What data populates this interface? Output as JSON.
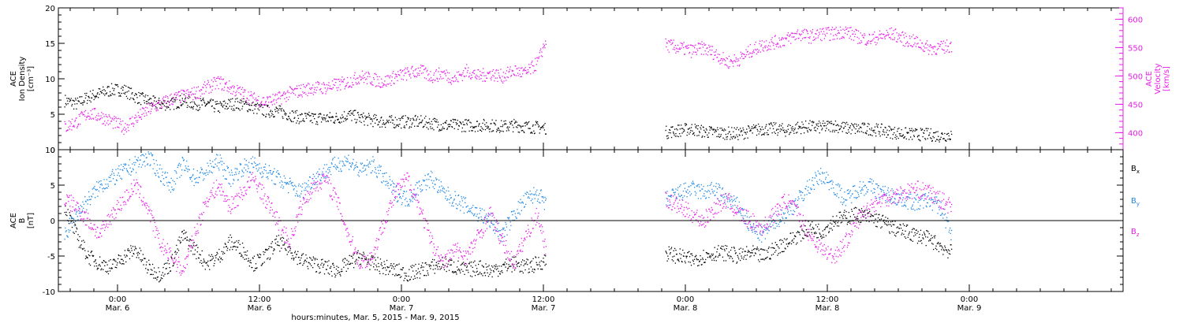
{
  "colors": {
    "black": "#000000",
    "magenta": "#e81ce8",
    "blue": "#1e88e5"
  },
  "xaxis": {
    "range": [
      -5,
      85
    ],
    "ticks": [
      {
        "x": 0,
        "time": "0:00",
        "date": "Mar. 6"
      },
      {
        "x": 12,
        "time": "12:00",
        "date": "Mar. 6"
      },
      {
        "x": 24,
        "time": "0:00",
        "date": "Mar. 7"
      },
      {
        "x": 36,
        "time": "12:00",
        "date": "Mar. 7"
      },
      {
        "x": 48,
        "time": "0:00",
        "date": "Mar. 8"
      },
      {
        "x": 60,
        "time": "12:00",
        "date": "Mar. 8"
      },
      {
        "x": 72,
        "time": "0:00",
        "date": "Mar. 9"
      }
    ],
    "title": "hours:minutes, Mar. 5, 2015 - Mar. 9, 2015"
  },
  "chart_data": [
    {
      "type": "scatter",
      "panel": "top",
      "left_axis": {
        "label_lines": [
          "ACE",
          "Ion Density",
          "[cm⁻³]"
        ],
        "ylim": [
          0,
          20
        ],
        "ticks": [
          "0",
          "5",
          "10",
          "15",
          "20"
        ],
        "color": "#000000"
      },
      "right_axis": {
        "label_lines": [
          "ACE",
          "Velocity",
          "[km/s]"
        ],
        "ylim": [
          370,
          620
        ],
        "ticks": [
          "400",
          "450",
          "500",
          "550",
          "600"
        ],
        "color": "#e81ce8"
      },
      "series": [
        {
          "axis": "left",
          "color": "#000000",
          "x": [
            -4.5,
            -3.5,
            -2.5,
            -1.5,
            -0.5,
            0.5,
            1.5,
            2.5,
            3.5,
            4.5,
            5.5,
            6.5,
            7.5,
            8.5,
            9.5,
            10.5,
            11.5,
            12.5,
            13.5,
            14.5,
            15.5,
            16.5,
            17.5,
            18.5,
            19.5,
            20.5,
            21.5,
            22.5,
            23.5,
            24.5,
            25.5,
            26.5,
            27.5,
            28.5,
            29.5,
            30.5,
            31.5,
            32.5,
            33.5,
            34.5,
            35.5,
            36.5,
            46.3,
            47.5,
            48.5,
            49.5,
            50.5,
            51.5,
            52.5,
            53.5,
            54.5,
            55.5,
            56.5,
            57.5,
            58.5,
            59.5,
            60.5,
            61.5,
            62.5,
            63.5,
            64.5,
            65.5,
            66.5,
            67.5,
            68.5,
            69.5,
            70.5
          ],
          "y": [
            7,
            6.5,
            7.5,
            8,
            8.5,
            8.5,
            7.5,
            7,
            6.5,
            6.5,
            7,
            6.5,
            6.5,
            6,
            6.5,
            6.5,
            6,
            5.5,
            5.5,
            5,
            4.5,
            4.5,
            4.5,
            4.5,
            5,
            4.5,
            4.2,
            4,
            4,
            4,
            4,
            3.8,
            3.5,
            3.5,
            3.5,
            3.5,
            3.5,
            3.3,
            3.5,
            3.3,
            3.2,
            3.1,
            2.5,
            2.8,
            3,
            2.6,
            2.5,
            2.4,
            2.3,
            2.7,
            3,
            3,
            2.8,
            3.2,
            3.3,
            3.2,
            3.5,
            3.1,
            3,
            3,
            2.8,
            2.5,
            2.3,
            2.2,
            2.2,
            2,
            2.2
          ]
        },
        {
          "axis": "right",
          "color": "#e81ce8",
          "x": [
            -4.5,
            -3.5,
            -2.5,
            -1.5,
            -0.5,
            0.5,
            1.5,
            2.5,
            3.5,
            4.5,
            5.5,
            6.5,
            7.5,
            8.5,
            9.5,
            10.5,
            11.5,
            12.5,
            13.5,
            14.5,
            15.5,
            16.5,
            17.5,
            18.5,
            19.5,
            20.5,
            21.5,
            22.5,
            23.5,
            24.5,
            25.5,
            26.5,
            27.5,
            28.5,
            29.5,
            30.5,
            31.5,
            32.5,
            33.5,
            34.5,
            35.5,
            36.2,
            46.3,
            47.5,
            48.5,
            49.5,
            50.5,
            51.5,
            52.5,
            53.5,
            54.5,
            55.5,
            56.5,
            57.5,
            58.5,
            59.5,
            60.5,
            61.5,
            62.5,
            63.5,
            64.5,
            65.5,
            66.5,
            67.5,
            68.5,
            69.5,
            70.5
          ],
          "y": [
            410,
            420,
            435,
            430,
            420,
            410,
            425,
            440,
            450,
            460,
            465,
            470,
            480,
            490,
            480,
            470,
            460,
            455,
            460,
            470,
            475,
            480,
            480,
            485,
            490,
            500,
            495,
            490,
            500,
            505,
            510,
            500,
            505,
            495,
            510,
            500,
            505,
            500,
            510,
            505,
            525,
            565,
            555,
            550,
            545,
            550,
            540,
            525,
            530,
            545,
            555,
            560,
            565,
            575,
            570,
            575,
            575,
            580,
            570,
            565,
            570,
            575,
            565,
            560,
            550,
            550,
            555
          ]
        }
      ]
    },
    {
      "type": "scatter",
      "panel": "bottom",
      "left_axis": {
        "label_lines": [
          "ACE",
          "B",
          "[nT]"
        ],
        "ylim": [
          -10,
          10
        ],
        "ticks": [
          "-10",
          "-5",
          "0",
          "5",
          "10"
        ],
        "color": "#000000"
      },
      "zero_line": 0,
      "legend": {
        "placement": "right",
        "entries": [
          {
            "base": "B",
            "sub": "x",
            "color": "#000000"
          },
          {
            "base": "B",
            "sub": "y",
            "color": "#1e88e5"
          },
          {
            "base": "B",
            "sub": "z",
            "color": "#e81ce8"
          }
        ]
      },
      "series": [
        {
          "name": "Bx",
          "color": "#000000",
          "x": [
            -4.5,
            -3.5,
            -2.5,
            -1.5,
            -0.5,
            0.5,
            1.5,
            2.5,
            3.5,
            4.5,
            5.5,
            6.5,
            7.5,
            8.5,
            9.5,
            10.5,
            11.5,
            12.5,
            13.5,
            14.5,
            15.5,
            16.5,
            17.5,
            18.5,
            19.5,
            20.5,
            21.5,
            22.5,
            23.5,
            24.5,
            25.5,
            26.5,
            27.5,
            28.5,
            29.5,
            30.5,
            31.5,
            32.5,
            33.5,
            34.5,
            35.5,
            36.2,
            46.3,
            47.5,
            48.5,
            49.5,
            50.5,
            51.5,
            52.5,
            53.5,
            54.5,
            55.5,
            56.5,
            57.5,
            58.5,
            59.5,
            60.5,
            61.5,
            62.5,
            63.5,
            64.5,
            65.5,
            66.5,
            67.5,
            68.5,
            69.5,
            70.5
          ],
          "y": [
            2,
            -2,
            -5,
            -6,
            -6.5,
            -5,
            -4,
            -6.5,
            -7.5,
            -6,
            -2,
            -4,
            -6,
            -5,
            -3,
            -4,
            -6,
            -5,
            -3,
            -4,
            -5.5,
            -6,
            -6.5,
            -7,
            -6,
            -5,
            -6,
            -6.5,
            -7,
            -7.5,
            -7,
            -6.5,
            -6,
            -6.5,
            -7,
            -6.5,
            -7,
            -6.5,
            -6,
            -6.5,
            -6,
            -5.5,
            -4.5,
            -5,
            -5.5,
            -5,
            -4.5,
            -4.5,
            -5,
            -4.5,
            -5,
            -4,
            -3,
            -2,
            -1,
            -1.5,
            0,
            0.5,
            1,
            0.5,
            0,
            -1,
            -1.5,
            -2,
            -2.5,
            -3.5,
            -4.5
          ]
        },
        {
          "name": "By",
          "color": "#1e88e5",
          "x": [
            -4.5,
            -3.5,
            -2.5,
            -1.5,
            -0.5,
            0.5,
            1.5,
            2.5,
            3.5,
            4.5,
            5.5,
            6.5,
            7.5,
            8.5,
            9.5,
            10.5,
            11.5,
            12.5,
            13.5,
            14.5,
            15.5,
            16.5,
            17.5,
            18.5,
            19.5,
            20.5,
            21.5,
            22.5,
            23.5,
            24.5,
            25.5,
            26.5,
            27.5,
            28.5,
            29.5,
            30.5,
            31.5,
            32.5,
            33.5,
            34.5,
            35.5,
            36.2,
            46.3,
            47.5,
            48.5,
            49.5,
            50.5,
            51.5,
            52.5,
            53.5,
            54.5,
            55.5,
            56.5,
            57.5,
            58.5,
            59.5,
            60.5,
            61.5,
            62.5,
            63.5,
            64.5,
            65.5,
            66.5,
            67.5,
            68.5,
            69.5,
            70.5
          ],
          "y": [
            -2,
            1,
            3,
            5,
            6,
            7,
            8,
            9,
            7,
            5,
            8,
            6,
            7,
            8.5,
            6,
            7.5,
            8,
            7,
            6,
            5,
            4,
            6,
            7,
            8,
            8.5,
            7,
            8,
            6,
            4,
            3,
            5,
            6,
            4,
            3,
            2,
            1,
            0,
            -2,
            1,
            3,
            4,
            2,
            3,
            4,
            4.5,
            4,
            4.5,
            3,
            2,
            -1,
            -2,
            0,
            1,
            3,
            5,
            6.5,
            5,
            3,
            4.5,
            5,
            4,
            3.5,
            3,
            2.5,
            3,
            2,
            -2
          ]
        },
        {
          "name": "Bz",
          "color": "#e81ce8",
          "x": [
            -4.5,
            -3.5,
            -2.5,
            -1.5,
            -0.5,
            0.5,
            1.5,
            2.5,
            3.5,
            4.5,
            5.5,
            6.5,
            7.5,
            8.5,
            9.5,
            10.5,
            11.5,
            12.5,
            13.5,
            14.5,
            15.5,
            16.5,
            17.5,
            18.5,
            19.5,
            20.5,
            21.5,
            22.5,
            23.5,
            24.5,
            25.5,
            26.5,
            27.5,
            28.5,
            29.5,
            30.5,
            31.5,
            32.5,
            33.5,
            34.5,
            35.5,
            36.2,
            46.3,
            47.5,
            48.5,
            49.5,
            50.5,
            51.5,
            52.5,
            53.5,
            54.5,
            55.5,
            56.5,
            57.5,
            58.5,
            59.5,
            60.5,
            61.5,
            62.5,
            63.5,
            64.5,
            65.5,
            66.5,
            67.5,
            68.5,
            69.5,
            70.5
          ],
          "y": [
            3,
            2,
            0,
            -2,
            1,
            3,
            5,
            2,
            -3,
            -5,
            -7,
            -2,
            3,
            5,
            2,
            4,
            6,
            3,
            0,
            -3,
            2,
            5,
            6,
            3,
            -2,
            -6,
            -5,
            0,
            4,
            6,
            2,
            -3,
            -6,
            -4,
            -5,
            -2,
            1,
            -3,
            -6,
            -2,
            1,
            -4,
            3,
            2,
            1,
            0,
            2,
            3,
            1,
            0,
            -1,
            1,
            3,
            1,
            -2,
            -4,
            -5,
            -3,
            0,
            2,
            3,
            3.5,
            4,
            4.5,
            4,
            3,
            2
          ]
        }
      ]
    }
  ]
}
